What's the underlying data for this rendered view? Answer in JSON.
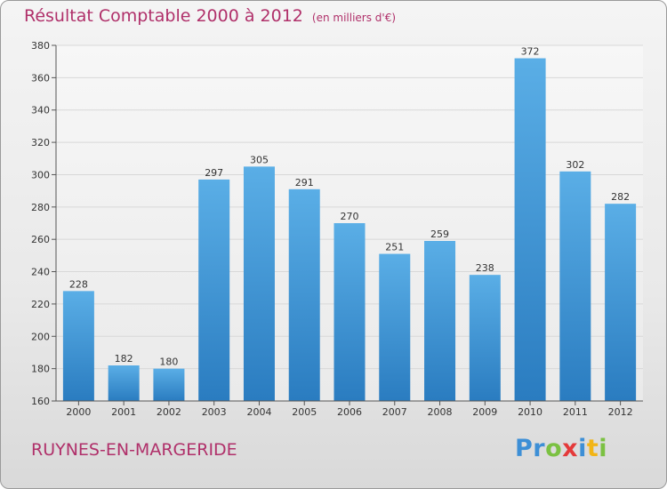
{
  "title": "Résultat Comptable 2000 à 2012",
  "subtitle": "(en milliers d'€)",
  "commune": "RUYNES-EN-MARGERIDE",
  "logo": {
    "p1": "Pr",
    "p2": "o",
    "p3": "x",
    "p4": "i",
    "p5": "t",
    "p6": "i"
  },
  "colors": {
    "bar_top": "#5aaee6",
    "bar_bottom": "#2a7cc0",
    "title": "#b0306a",
    "grid": "#d8d8d8"
  },
  "chart_data": {
    "type": "bar",
    "title": "Résultat Comptable 2000 à 2012",
    "xlabel": "",
    "ylabel": "",
    "categories": [
      "2000",
      "2001",
      "2002",
      "2003",
      "2004",
      "2005",
      "2006",
      "2007",
      "2008",
      "2009",
      "2010",
      "2011",
      "2012"
    ],
    "values": [
      228,
      182,
      180,
      297,
      305,
      291,
      270,
      251,
      259,
      238,
      372,
      302,
      282
    ],
    "ylim": [
      160,
      380
    ],
    "yticks": [
      160,
      180,
      200,
      220,
      240,
      260,
      280,
      300,
      320,
      340,
      360,
      380
    ],
    "grid": true
  }
}
